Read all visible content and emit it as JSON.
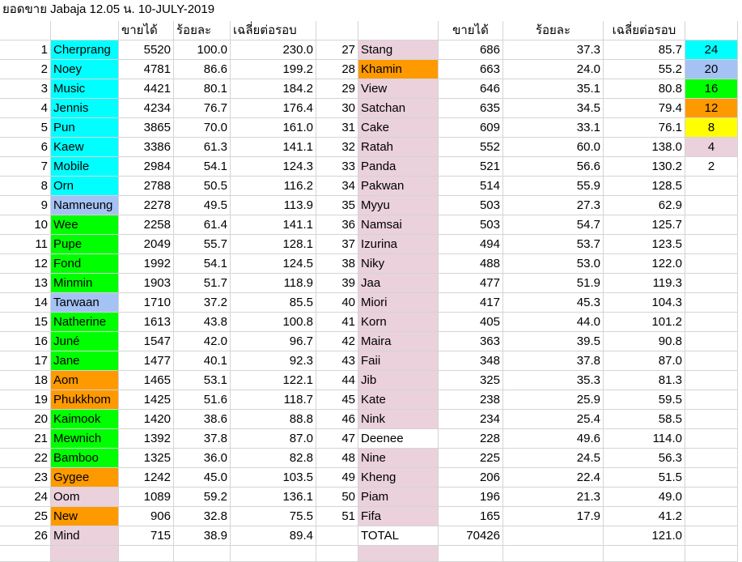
{
  "title": "ยอดขาย Jabaja 12.05 น. 10-JULY-2019",
  "headers": {
    "sales": "ขายได้",
    "percent": "ร้อยละ",
    "avg": "เฉลี่ยต่อรอบ"
  },
  "colors": {
    "cyan": "#00ffff",
    "blue": "#a4c2f4",
    "green": "#00ff00",
    "orange": "#ff9900",
    "yellow": "#ffff00",
    "pink": "#ead1dc",
    "white": "#ffffff"
  },
  "legend": [
    {
      "label": "24",
      "color": "cyan"
    },
    {
      "label": "20",
      "color": "blue"
    },
    {
      "label": "16",
      "color": "green"
    },
    {
      "label": "12",
      "color": "orange"
    },
    {
      "label": "8",
      "color": "yellow"
    },
    {
      "label": "4",
      "color": "pink"
    },
    {
      "label": "2",
      "color": "white"
    }
  ],
  "left_rows": [
    {
      "num": "1",
      "name": "Cherprang",
      "sales": "5520",
      "pct": "100.0",
      "avg": "230.0",
      "color": "cyan"
    },
    {
      "num": "2",
      "name": "Noey",
      "sales": "4781",
      "pct": "86.6",
      "avg": "199.2",
      "color": "cyan"
    },
    {
      "num": "3",
      "name": "Music",
      "sales": "4421",
      "pct": "80.1",
      "avg": "184.2",
      "color": "cyan"
    },
    {
      "num": "4",
      "name": "Jennis",
      "sales": "4234",
      "pct": "76.7",
      "avg": "176.4",
      "color": "cyan"
    },
    {
      "num": "5",
      "name": "Pun",
      "sales": "3865",
      "pct": "70.0",
      "avg": "161.0",
      "color": "cyan"
    },
    {
      "num": "6",
      "name": "Kaew",
      "sales": "3386",
      "pct": "61.3",
      "avg": "141.1",
      "color": "cyan"
    },
    {
      "num": "7",
      "name": "Mobile",
      "sales": "2984",
      "pct": "54.1",
      "avg": "124.3",
      "color": "cyan"
    },
    {
      "num": "8",
      "name": "Orn",
      "sales": "2788",
      "pct": "50.5",
      "avg": "116.2",
      "color": "cyan"
    },
    {
      "num": "9",
      "name": "Namneung",
      "sales": "2278",
      "pct": "49.5",
      "avg": "113.9",
      "color": "blue"
    },
    {
      "num": "10",
      "name": "Wee",
      "sales": "2258",
      "pct": "61.4",
      "avg": "141.1",
      "color": "green"
    },
    {
      "num": "11",
      "name": "Pupe",
      "sales": "2049",
      "pct": "55.7",
      "avg": "128.1",
      "color": "green"
    },
    {
      "num": "12",
      "name": "Fond",
      "sales": "1992",
      "pct": "54.1",
      "avg": "124.5",
      "color": "green"
    },
    {
      "num": "13",
      "name": "Minmin",
      "sales": "1903",
      "pct": "51.7",
      "avg": "118.9",
      "color": "green"
    },
    {
      "num": "14",
      "name": "Tarwaan",
      "sales": "1710",
      "pct": "37.2",
      "avg": "85.5",
      "color": "blue"
    },
    {
      "num": "15",
      "name": "Natherine",
      "sales": "1613",
      "pct": "43.8",
      "avg": "100.8",
      "color": "green"
    },
    {
      "num": "16",
      "name": "Juné",
      "sales": "1547",
      "pct": "42.0",
      "avg": "96.7",
      "color": "green"
    },
    {
      "num": "17",
      "name": "Jane",
      "sales": "1477",
      "pct": "40.1",
      "avg": "92.3",
      "color": "green"
    },
    {
      "num": "18",
      "name": "Aom",
      "sales": "1465",
      "pct": "53.1",
      "avg": "122.1",
      "color": "orange"
    },
    {
      "num": "19",
      "name": "Phukkhom",
      "sales": "1425",
      "pct": "51.6",
      "avg": "118.7",
      "color": "orange"
    },
    {
      "num": "20",
      "name": "Kaimook",
      "sales": "1420",
      "pct": "38.6",
      "avg": "88.8",
      "color": "green"
    },
    {
      "num": "21",
      "name": "Mewnich",
      "sales": "1392",
      "pct": "37.8",
      "avg": "87.0",
      "color": "green"
    },
    {
      "num": "22",
      "name": "Bamboo",
      "sales": "1325",
      "pct": "36.0",
      "avg": "82.8",
      "color": "green"
    },
    {
      "num": "23",
      "name": "Gygee",
      "sales": "1242",
      "pct": "45.0",
      "avg": "103.5",
      "color": "orange"
    },
    {
      "num": "24",
      "name": "Oom",
      "sales": "1089",
      "pct": "59.2",
      "avg": "136.1",
      "color": "pink"
    },
    {
      "num": "25",
      "name": "New",
      "sales": "906",
      "pct": "32.8",
      "avg": "75.5",
      "color": "orange"
    },
    {
      "num": "26",
      "name": "Mind",
      "sales": "715",
      "pct": "38.9",
      "avg": "89.4",
      "color": "pink"
    }
  ],
  "right_rows": [
    {
      "num": "27",
      "name": "Stang",
      "sales": "686",
      "pct": "37.3",
      "avg": "85.7",
      "color": "pink"
    },
    {
      "num": "28",
      "name": "Khamin",
      "sales": "663",
      "pct": "24.0",
      "avg": "55.2",
      "color": "orange"
    },
    {
      "num": "29",
      "name": "View",
      "sales": "646",
      "pct": "35.1",
      "avg": "80.8",
      "color": "pink"
    },
    {
      "num": "30",
      "name": "Satchan",
      "sales": "635",
      "pct": "34.5",
      "avg": "79.4",
      "color": "pink"
    },
    {
      "num": "31",
      "name": "Cake",
      "sales": "609",
      "pct": "33.1",
      "avg": "76.1",
      "color": "pink"
    },
    {
      "num": "32",
      "name": "Ratah",
      "sales": "552",
      "pct": "60.0",
      "avg": "138.0",
      "color": "pink"
    },
    {
      "num": "33",
      "name": "Panda",
      "sales": "521",
      "pct": "56.6",
      "avg": "130.2",
      "color": "pink"
    },
    {
      "num": "34",
      "name": "Pakwan",
      "sales": "514",
      "pct": "55.9",
      "avg": "128.5",
      "color": "pink"
    },
    {
      "num": "35",
      "name": "Myyu",
      "sales": "503",
      "pct": "27.3",
      "avg": "62.9",
      "color": "pink"
    },
    {
      "num": "36",
      "name": "Namsai",
      "sales": "503",
      "pct": "54.7",
      "avg": "125.7",
      "color": "pink"
    },
    {
      "num": "37",
      "name": "Izurina",
      "sales": "494",
      "pct": "53.7",
      "avg": "123.5",
      "color": "pink"
    },
    {
      "num": "38",
      "name": "Niky",
      "sales": "488",
      "pct": "53.0",
      "avg": "122.0",
      "color": "pink"
    },
    {
      "num": "39",
      "name": "Jaa",
      "sales": "477",
      "pct": "51.9",
      "avg": "119.3",
      "color": "pink"
    },
    {
      "num": "40",
      "name": "Miori",
      "sales": "417",
      "pct": "45.3",
      "avg": "104.3",
      "color": "pink"
    },
    {
      "num": "41",
      "name": "Korn",
      "sales": "405",
      "pct": "44.0",
      "avg": "101.2",
      "color": "pink"
    },
    {
      "num": "42",
      "name": "Maira",
      "sales": "363",
      "pct": "39.5",
      "avg": "90.8",
      "color": "pink"
    },
    {
      "num": "43",
      "name": "Faii",
      "sales": "348",
      "pct": "37.8",
      "avg": "87.0",
      "color": "pink"
    },
    {
      "num": "44",
      "name": "Jib",
      "sales": "325",
      "pct": "35.3",
      "avg": "81.3",
      "color": "pink"
    },
    {
      "num": "45",
      "name": "Kate",
      "sales": "238",
      "pct": "25.9",
      "avg": "59.5",
      "color": "pink"
    },
    {
      "num": "46",
      "name": "Nink",
      "sales": "234",
      "pct": "25.4",
      "avg": "58.5",
      "color": "pink"
    },
    {
      "num": "47",
      "name": "Deenee",
      "sales": "228",
      "pct": "49.6",
      "avg": "114.0",
      "color": "white"
    },
    {
      "num": "48",
      "name": "Nine",
      "sales": "225",
      "pct": "24.5",
      "avg": "56.3",
      "color": "pink"
    },
    {
      "num": "49",
      "name": "Kheng",
      "sales": "206",
      "pct": "22.4",
      "avg": "51.5",
      "color": "pink"
    },
    {
      "num": "50",
      "name": "Piam",
      "sales": "196",
      "pct": "21.3",
      "avg": "49.0",
      "color": "pink"
    },
    {
      "num": "51",
      "name": "Fifa",
      "sales": "165",
      "pct": "17.9",
      "avg": "41.2",
      "color": "pink"
    },
    {
      "num": "",
      "name": "TOTAL",
      "sales": "70426",
      "pct": "",
      "avg": "121.0",
      "color": "white"
    }
  ]
}
